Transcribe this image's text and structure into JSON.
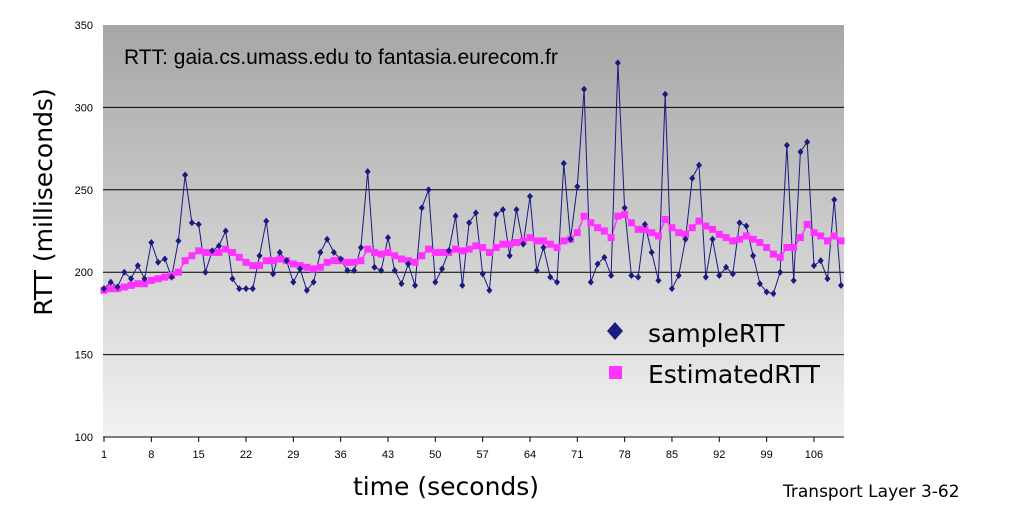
{
  "chart_data": {
    "type": "line",
    "title": "RTT: gaia.cs.umass.edu to fantasia.eurecom.fr",
    "xlabel": "time (seconds)",
    "ylabel": "RTT (milliseconds)",
    "ylim": [
      100,
      350
    ],
    "y_ticks": [
      100,
      150,
      200,
      250,
      300,
      350
    ],
    "x_tick_labels": [
      "1",
      "8",
      "15",
      "22",
      "29",
      "36",
      "43",
      "50",
      "57",
      "64",
      "71",
      "78",
      "85",
      "92",
      "99",
      "106"
    ],
    "grid": "horizontal",
    "legend_position": "bottom-right",
    "colors": {
      "background_top": "#a6a6a6",
      "background_bottom": "#f2f2f2",
      "sample": "#1a1a80",
      "estimated": "#ff33ff"
    },
    "series": [
      {
        "name": "sampleRTT",
        "marker": "diamond",
        "values": [
          190,
          194,
          191,
          200,
          196,
          204,
          196,
          218,
          206,
          208,
          197,
          219,
          259,
          230,
          229,
          200,
          213,
          216,
          225,
          196,
          190,
          190,
          190,
          210,
          231,
          199,
          212,
          207,
          194,
          202,
          189,
          194,
          212,
          220,
          212,
          208,
          201,
          201,
          215,
          261,
          203,
          201,
          221,
          201,
          193,
          205,
          192,
          239,
          250,
          194,
          202,
          213,
          234,
          192,
          230,
          236,
          199,
          189,
          235,
          238,
          210,
          238,
          217,
          246,
          201,
          215,
          197,
          194,
          266,
          220,
          252,
          311,
          194,
          205,
          209,
          198,
          327,
          239,
          198,
          197,
          229,
          212,
          195,
          308,
          190,
          198,
          220,
          257,
          265,
          197,
          220,
          198,
          203,
          199,
          230,
          228,
          210,
          193,
          188,
          187,
          200,
          277,
          195,
          273,
          279,
          204,
          207,
          196,
          244,
          192
        ]
      },
      {
        "name": "EstimatedRTT",
        "marker": "square",
        "values": [
          189,
          190,
          190,
          191,
          192,
          193,
          193,
          195,
          196,
          197,
          198,
          200,
          207,
          210,
          213,
          212,
          212,
          212,
          214,
          212,
          209,
          206,
          204,
          204,
          207,
          207,
          208,
          207,
          205,
          204,
          203,
          202,
          203,
          206,
          207,
          207,
          206,
          206,
          207,
          214,
          212,
          211,
          212,
          210,
          208,
          207,
          206,
          210,
          214,
          212,
          212,
          212,
          214,
          213,
          214,
          216,
          215,
          212,
          215,
          217,
          217,
          218,
          219,
          221,
          219,
          219,
          217,
          215,
          219,
          220,
          224,
          234,
          230,
          227,
          225,
          221,
          234,
          235,
          230,
          226,
          226,
          224,
          222,
          232,
          227,
          224,
          223,
          227,
          231,
          228,
          226,
          223,
          221,
          219,
          220,
          222,
          220,
          218,
          215,
          211,
          209,
          215,
          215,
          221,
          229,
          224,
          222,
          219,
          222,
          219
        ]
      }
    ]
  },
  "footer": "Transport Layer 3-62"
}
